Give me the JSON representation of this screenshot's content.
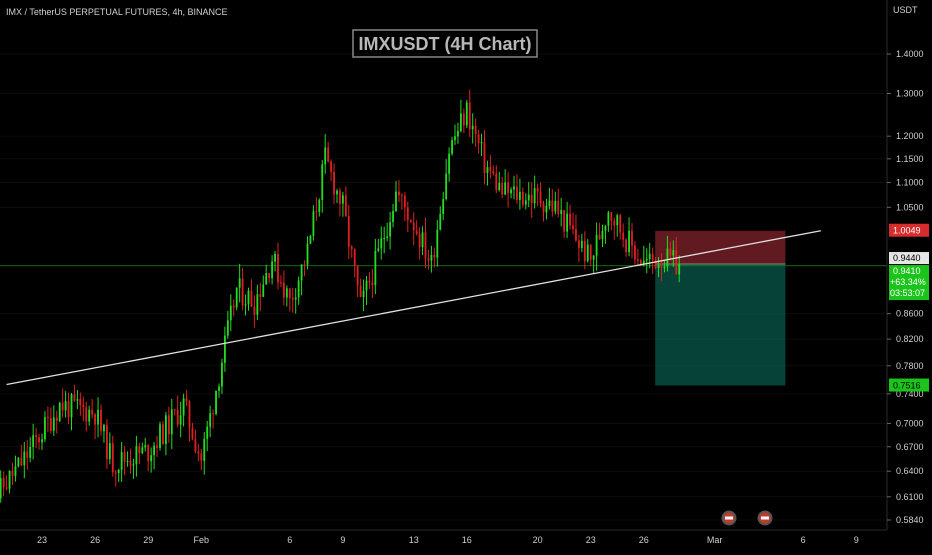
{
  "header": {
    "symbol_line": "IMX / TetherUS PERPETUAL FUTURES, 4h, BINANCE"
  },
  "chart_title": "IMXUSDT (4H Chart)",
  "price_axis": {
    "currency": "USDT",
    "ticks": [
      "1.4000",
      "1.3000",
      "1.2000",
      "1.1500",
      "1.1000",
      "1.0500",
      "0.8600",
      "0.8200",
      "0.7800",
      "0.7400",
      "0.7000",
      "0.6700",
      "0.6400",
      "0.6100",
      "0.5840"
    ]
  },
  "time_axis": {
    "labels": [
      "23",
      "26",
      "29",
      "Feb",
      "6",
      "9",
      "13",
      "16",
      "20",
      "23",
      "26",
      "Mar",
      "6",
      "9"
    ]
  },
  "badges": {
    "stop_price": "1.0049",
    "entry_price": "0.9440",
    "last_price": "0.9410",
    "change": "+63.34%",
    "countdown": "03:53:07",
    "target_price": "0.7516"
  },
  "colors": {
    "background": "#000000",
    "bull": "#22dd22",
    "bear": "#e02020",
    "stop_zone": "#b0303a",
    "target_zone": "#0a6e5c",
    "trendline": "#e0e0e0",
    "current_line": "#1a8a1a",
    "title_border": "#888888"
  },
  "chart_data": {
    "type": "candlestick",
    "x_range": [
      "Jan 20",
      "Mar 10"
    ],
    "y_scale": "log",
    "y_range": [
      0.574,
      1.52
    ],
    "anchors": [
      {
        "date": "Jan 20",
        "price": 0.6
      },
      {
        "date": "Jan 22",
        "price": 0.655
      },
      {
        "date": "Jan 24",
        "price": 0.725
      },
      {
        "date": "Jan 26",
        "price": 0.715
      },
      {
        "date": "Jan 27",
        "price": 0.65
      },
      {
        "date": "Jan 29",
        "price": 0.665
      },
      {
        "date": "Jan 31",
        "price": 0.725
      },
      {
        "date": "Feb 1",
        "price": 0.655
      },
      {
        "date": "Feb 3",
        "price": 0.9
      },
      {
        "date": "Feb 4",
        "price": 0.88
      },
      {
        "date": "Feb 5",
        "price": 0.955
      },
      {
        "date": "Feb 6",
        "price": 0.88
      },
      {
        "date": "Feb 7",
        "price": 0.965
      },
      {
        "date": "Feb 8",
        "price": 1.15
      },
      {
        "date": "Feb 9",
        "price": 1.05
      },
      {
        "date": "Feb 10",
        "price": 0.87
      },
      {
        "date": "Feb 11",
        "price": 0.96
      },
      {
        "date": "Feb 12",
        "price": 1.08
      },
      {
        "date": "Feb 13",
        "price": 1.02
      },
      {
        "date": "Feb 14",
        "price": 0.945
      },
      {
        "date": "Feb 15",
        "price": 1.17
      },
      {
        "date": "Feb 16",
        "price": 1.26
      },
      {
        "date": "Feb 17",
        "price": 1.14
      },
      {
        "date": "Feb 18",
        "price": 1.08
      },
      {
        "date": "Feb 20",
        "price": 1.07
      },
      {
        "date": "Feb 21",
        "price": 1.05
      },
      {
        "date": "Feb 23",
        "price": 0.95
      },
      {
        "date": "Feb 24",
        "price": 1.05
      },
      {
        "date": "Feb 25",
        "price": 0.99
      },
      {
        "date": "Feb 26",
        "price": 0.945
      },
      {
        "date": "Feb 27",
        "price": 0.955
      },
      {
        "date": "Feb 28",
        "price": 0.941
      }
    ],
    "trendline": [
      {
        "date": "Jan 21",
        "price": 0.753
      },
      {
        "date": "Mar 7",
        "price": 1.0049
      }
    ],
    "position": {
      "entry": 0.944,
      "stop": 1.0049,
      "target": 0.7516,
      "start": "Feb 28",
      "end": "Mar 5"
    },
    "current_price": 0.941
  }
}
